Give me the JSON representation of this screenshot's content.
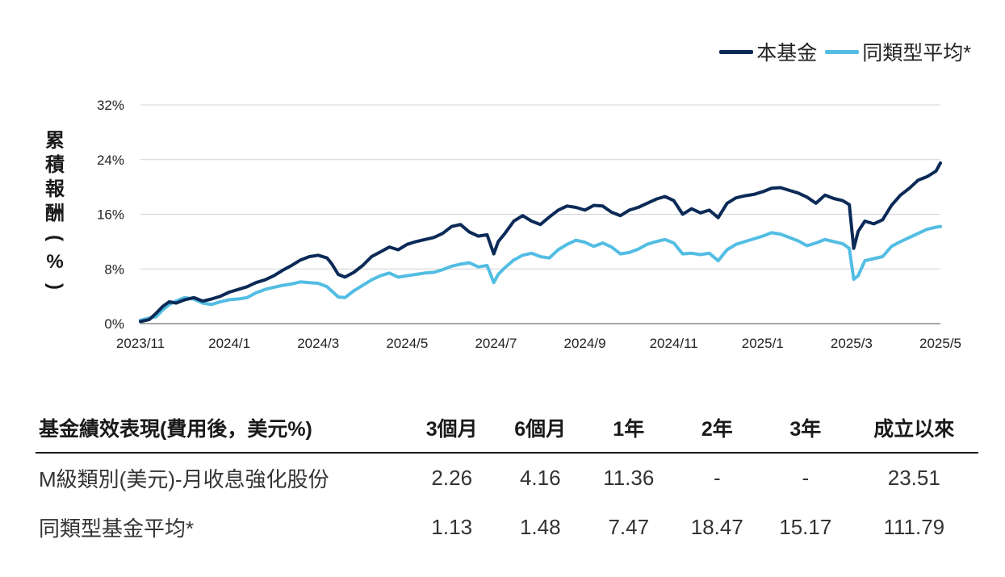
{
  "legend": {
    "fund": "本基金",
    "peer": "同類型平均*"
  },
  "colors": {
    "fund": "#0b2a57",
    "peer": "#53bde3",
    "grid": "#d4d4d4",
    "axis": "#8a8a8a"
  },
  "chart_data": {
    "type": "line",
    "ylabel_chars": [
      "累",
      "積",
      "報",
      "酬",
      "(",
      "%",
      ")"
    ],
    "ylim": [
      0,
      32
    ],
    "yticks": [
      0,
      8,
      16,
      24,
      32
    ],
    "ytick_labels": [
      "0%",
      "8%",
      "16%",
      "24%",
      "32%"
    ],
    "xlim": [
      0,
      18
    ],
    "xticks": [
      0,
      2,
      4,
      6,
      8,
      10,
      12,
      14,
      16,
      18
    ],
    "xtick_labels": [
      "2023/11",
      "2024/1",
      "2024/3",
      "2024/5",
      "2024/7",
      "2024/9",
      "2024/11",
      "2025/1",
      "2025/3",
      "2025/5"
    ],
    "series": [
      {
        "name": "本基金",
        "x": [
          0,
          0.2,
          0.35,
          0.5,
          0.65,
          0.8,
          1.0,
          1.2,
          1.4,
          1.6,
          1.8,
          2.0,
          2.2,
          2.4,
          2.6,
          2.8,
          3.0,
          3.2,
          3.4,
          3.6,
          3.8,
          4.0,
          4.2,
          4.3,
          4.45,
          4.6,
          4.8,
          5.0,
          5.2,
          5.4,
          5.6,
          5.8,
          6.0,
          6.2,
          6.4,
          6.6,
          6.8,
          7.0,
          7.2,
          7.4,
          7.6,
          7.8,
          7.95,
          8.05,
          8.2,
          8.4,
          8.6,
          8.8,
          9.0,
          9.2,
          9.4,
          9.6,
          9.8,
          10.0,
          10.2,
          10.4,
          10.6,
          10.8,
          11.0,
          11.2,
          11.4,
          11.6,
          11.8,
          12.0,
          12.2,
          12.4,
          12.6,
          12.8,
          13.0,
          13.2,
          13.4,
          13.6,
          13.8,
          14.0,
          14.2,
          14.4,
          14.6,
          14.8,
          15.0,
          15.2,
          15.4,
          15.6,
          15.8,
          15.95,
          16.05,
          16.15,
          16.3,
          16.5,
          16.7,
          16.9,
          17.1,
          17.3,
          17.5,
          17.7,
          17.9,
          18.0
        ],
        "y": [
          0.3,
          0.6,
          1.5,
          2.5,
          3.2,
          3.0,
          3.5,
          3.8,
          3.3,
          3.6,
          4.0,
          4.6,
          5.0,
          5.4,
          6.0,
          6.4,
          7.0,
          7.8,
          8.5,
          9.3,
          9.8,
          10.0,
          9.6,
          8.8,
          7.2,
          6.8,
          7.5,
          8.5,
          9.8,
          10.5,
          11.2,
          10.8,
          11.6,
          12.0,
          12.3,
          12.6,
          13.2,
          14.2,
          14.5,
          13.4,
          12.8,
          13.0,
          10.2,
          12.0,
          13.2,
          15.0,
          15.8,
          15.0,
          14.5,
          15.6,
          16.6,
          17.2,
          17.0,
          16.6,
          17.3,
          17.2,
          16.3,
          15.8,
          16.6,
          17.0,
          17.6,
          18.2,
          18.6,
          18.0,
          16.0,
          16.8,
          16.2,
          16.6,
          15.5,
          17.6,
          18.4,
          18.7,
          18.9,
          19.3,
          19.8,
          19.9,
          19.5,
          19.1,
          18.5,
          17.6,
          18.8,
          18.3,
          18.0,
          17.4,
          11.0,
          13.5,
          15.0,
          14.6,
          15.2,
          17.3,
          18.8,
          19.8,
          21.0,
          21.5,
          22.3,
          23.5
        ]
      },
      {
        "name": "同類型平均*",
        "x": [
          0,
          0.2,
          0.35,
          0.5,
          0.65,
          0.8,
          1.0,
          1.2,
          1.4,
          1.6,
          1.8,
          2.0,
          2.2,
          2.4,
          2.6,
          2.8,
          3.0,
          3.2,
          3.4,
          3.6,
          3.8,
          4.0,
          4.2,
          4.3,
          4.45,
          4.6,
          4.8,
          5.0,
          5.2,
          5.4,
          5.6,
          5.8,
          6.0,
          6.2,
          6.4,
          6.6,
          6.8,
          7.0,
          7.2,
          7.4,
          7.6,
          7.8,
          7.95,
          8.05,
          8.2,
          8.4,
          8.6,
          8.8,
          9.0,
          9.2,
          9.4,
          9.6,
          9.8,
          10.0,
          10.2,
          10.4,
          10.6,
          10.8,
          11.0,
          11.2,
          11.4,
          11.6,
          11.8,
          12.0,
          12.2,
          12.4,
          12.6,
          12.8,
          13.0,
          13.2,
          13.4,
          13.6,
          13.8,
          14.0,
          14.2,
          14.4,
          14.6,
          14.8,
          15.0,
          15.2,
          15.4,
          15.6,
          15.8,
          15.95,
          16.05,
          16.15,
          16.3,
          16.5,
          16.7,
          16.9,
          17.1,
          17.3,
          17.5,
          17.7,
          17.9,
          18.0
        ],
        "y": [
          0.5,
          0.8,
          1.0,
          2.0,
          2.8,
          3.3,
          3.8,
          3.6,
          3.0,
          2.8,
          3.2,
          3.5,
          3.6,
          3.8,
          4.5,
          5.0,
          5.3,
          5.6,
          5.8,
          6.1,
          6.0,
          5.9,
          5.4,
          4.8,
          3.9,
          3.8,
          4.8,
          5.6,
          6.4,
          7.0,
          7.4,
          6.8,
          7.0,
          7.2,
          7.4,
          7.5,
          7.9,
          8.4,
          8.7,
          8.9,
          8.3,
          8.5,
          6.0,
          7.2,
          8.2,
          9.3,
          10.0,
          10.3,
          9.8,
          9.6,
          10.8,
          11.6,
          12.2,
          11.9,
          11.3,
          11.8,
          11.2,
          10.2,
          10.4,
          10.9,
          11.6,
          12.0,
          12.3,
          11.8,
          10.2,
          10.3,
          10.1,
          10.3,
          9.2,
          10.8,
          11.6,
          12.0,
          12.4,
          12.8,
          13.3,
          13.1,
          12.6,
          12.1,
          11.4,
          11.8,
          12.3,
          12.0,
          11.7,
          11.0,
          6.5,
          7.0,
          9.2,
          9.5,
          9.8,
          11.3,
          12.0,
          12.6,
          13.2,
          13.8,
          14.1,
          14.2
        ]
      }
    ]
  },
  "table": {
    "headers": [
      "基金績效表現(費用後，美元%)",
      "3個月",
      "6個月",
      "1年",
      "2年",
      "3年",
      "成立以來"
    ],
    "rows": [
      {
        "name": "M級類別(美元)-月收息強化股份",
        "values": [
          "2.26",
          "4.16",
          "11.36",
          "-",
          "-",
          "23.51"
        ]
      },
      {
        "name": "同類型基金平均*",
        "values": [
          "1.13",
          "1.48",
          "7.47",
          "18.47",
          "15.17",
          "111.79"
        ]
      }
    ]
  }
}
